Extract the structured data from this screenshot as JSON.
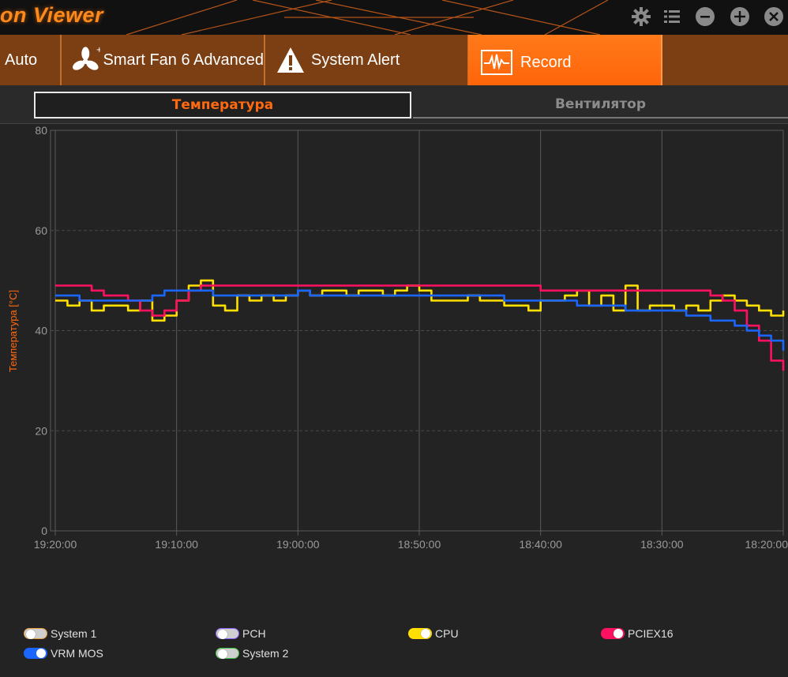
{
  "app": {
    "title": "on Viewer"
  },
  "tabs": [
    {
      "label": "Auto",
      "icon": "auto-icon",
      "active": false
    },
    {
      "label": "Smart Fan 6 Advanced",
      "icon": "fan-icon",
      "active": false
    },
    {
      "label": "System Alert",
      "icon": "warning-icon",
      "active": false
    },
    {
      "label": "Record",
      "icon": "record-icon",
      "active": true
    }
  ],
  "subtabs": [
    {
      "label": "Температура",
      "active": true
    },
    {
      "label": "Вентилятор",
      "active": false
    }
  ],
  "colors": {
    "accent": "#ff6a10",
    "cpu": "#ffe000",
    "pciex16": "#ff1060",
    "vrm_mos": "#1a66ff"
  },
  "chart_data": {
    "type": "line",
    "ylabel": "Температура [°C]",
    "xlabel": "",
    "ylim": [
      0,
      80
    ],
    "yticks": [
      "0",
      "20",
      "40",
      "60",
      "80"
    ],
    "xticks": [
      "19:20:00",
      "19:10:00",
      "19:00:00",
      "18:50:00",
      "18:40:00",
      "18:30:00",
      "18:20:00"
    ],
    "xlim_minutes_ago": [
      0,
      60
    ],
    "grid": true,
    "series": [
      {
        "name": "CPU",
        "color": "#ffe000",
        "x": [
          0,
          1,
          2,
          3,
          4,
          5,
          6,
          7,
          8,
          9,
          10,
          11,
          12,
          13,
          14,
          15,
          16,
          17,
          18,
          19,
          20,
          21,
          22,
          23,
          24,
          25,
          26,
          27,
          28,
          29,
          30,
          31,
          32,
          33,
          34,
          35,
          36,
          37,
          38,
          39,
          40,
          41,
          42,
          43,
          44,
          45,
          46,
          47,
          48,
          49,
          50,
          51,
          52,
          53,
          54,
          55,
          56,
          57,
          58,
          59,
          60
        ],
        "values": [
          46,
          45,
          46,
          44,
          45,
          45,
          44,
          46,
          42,
          43,
          46,
          49,
          50,
          45,
          44,
          47,
          46,
          47,
          46,
          47,
          48,
          47,
          48,
          48,
          47,
          48,
          48,
          47,
          48,
          49,
          48,
          46,
          46,
          46,
          47,
          46,
          46,
          45,
          45,
          44,
          46,
          46,
          47,
          48,
          45,
          47,
          44,
          49,
          44,
          45,
          45,
          44,
          45,
          44,
          46,
          47,
          46,
          45,
          44,
          43,
          44
        ]
      },
      {
        "name": "PCIEX16",
        "color": "#ff1060",
        "x": [
          0,
          1,
          2,
          3,
          4,
          5,
          6,
          7,
          8,
          9,
          10,
          11,
          12,
          13,
          14,
          15,
          16,
          17,
          18,
          19,
          20,
          21,
          22,
          23,
          24,
          25,
          26,
          27,
          28,
          29,
          30,
          31,
          32,
          33,
          34,
          35,
          36,
          37,
          38,
          39,
          40,
          41,
          42,
          43,
          44,
          45,
          46,
          47,
          48,
          49,
          50,
          51,
          52,
          53,
          54,
          55,
          56,
          57,
          58,
          59,
          60
        ],
        "values": [
          49,
          49,
          49,
          48,
          47,
          47,
          46,
          44,
          43,
          44,
          46,
          48,
          49,
          49,
          49,
          49,
          49,
          49,
          49,
          49,
          49,
          49,
          49,
          49,
          49,
          49,
          49,
          49,
          49,
          49,
          49,
          49,
          49,
          49,
          49,
          49,
          49,
          49,
          49,
          49,
          48,
          48,
          48,
          48,
          48,
          48,
          48,
          48,
          48,
          48,
          48,
          48,
          48,
          48,
          47,
          46,
          44,
          41,
          38,
          34,
          32
        ]
      },
      {
        "name": "VRM MOS",
        "color": "#1a66ff",
        "x": [
          0,
          1,
          2,
          3,
          4,
          5,
          6,
          7,
          8,
          9,
          10,
          11,
          12,
          13,
          14,
          15,
          16,
          17,
          18,
          19,
          20,
          21,
          22,
          23,
          24,
          25,
          26,
          27,
          28,
          29,
          30,
          31,
          32,
          33,
          34,
          35,
          36,
          37,
          38,
          39,
          40,
          41,
          42,
          43,
          44,
          45,
          46,
          47,
          48,
          49,
          50,
          51,
          52,
          53,
          54,
          55,
          56,
          57,
          58,
          59,
          60
        ],
        "values": [
          47,
          47,
          46,
          46,
          46,
          46,
          46,
          46,
          47,
          48,
          48,
          48,
          48,
          47,
          47,
          47,
          47,
          47,
          47,
          47,
          48,
          47,
          47,
          47,
          47,
          47,
          47,
          47,
          47,
          47,
          47,
          47,
          47,
          47,
          47,
          47,
          47,
          46,
          46,
          46,
          46,
          46,
          46,
          45,
          45,
          45,
          45,
          44,
          44,
          44,
          44,
          44,
          43,
          43,
          42,
          42,
          41,
          40,
          39,
          38,
          36
        ]
      }
    ]
  },
  "legend": [
    {
      "label": "System 1",
      "on": false,
      "color": "#e8a040"
    },
    {
      "label": "PCH",
      "on": false,
      "color": "#8a60ff"
    },
    {
      "label": "CPU",
      "on": true,
      "color": "#ffe000"
    },
    {
      "label": "PCIEX16",
      "on": true,
      "color": "#ff1060"
    },
    {
      "label": "VRM MOS",
      "on": true,
      "color": "#1a66ff"
    },
    {
      "label": "System 2",
      "on": false,
      "color": "#40c040"
    }
  ]
}
